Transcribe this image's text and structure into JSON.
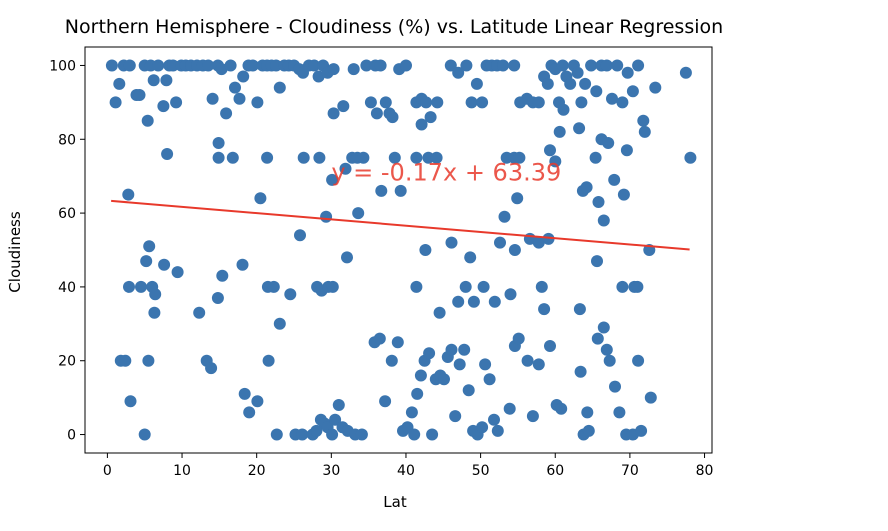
{
  "chart_data": {
    "type": "scatter",
    "title": "Northern Hemisphere - Cloudiness (%) vs. Latitude Linear Regression",
    "xlabel": "Lat",
    "ylabel": "Cloudiness",
    "xlim": [
      -3,
      81
    ],
    "ylim": [
      -5,
      105
    ],
    "xticks": [
      0,
      10,
      20,
      30,
      40,
      50,
      60,
      70,
      80
    ],
    "yticks": [
      0,
      20,
      40,
      60,
      80,
      100
    ],
    "grid": false,
    "point_color": "#3b75af",
    "line_color": "#e8392b",
    "regression": {
      "slope": -0.17,
      "intercept": 63.39,
      "x_range": [
        0.5,
        78
      ],
      "equation": "y = -0.17x + 63.39",
      "label_x": 30,
      "label_y": 71
    },
    "points": [
      [
        0.6,
        100
      ],
      [
        1.1,
        90
      ],
      [
        1.6,
        95
      ],
      [
        2.2,
        100
      ],
      [
        3.0,
        100
      ],
      [
        3.9,
        92
      ],
      [
        4.3,
        92
      ],
      [
        5.0,
        100
      ],
      [
        5.4,
        85
      ],
      [
        5.8,
        100
      ],
      [
        6.2,
        96
      ],
      [
        6.8,
        100
      ],
      [
        7.5,
        89
      ],
      [
        7.9,
        96
      ],
      [
        8.3,
        100
      ],
      [
        8.8,
        100
      ],
      [
        9.2,
        90
      ],
      [
        9.9,
        100
      ],
      [
        10.5,
        100
      ],
      [
        11.2,
        100
      ],
      [
        12.0,
        100
      ],
      [
        12.8,
        100
      ],
      [
        13.5,
        100
      ],
      [
        14.1,
        91
      ],
      [
        14.8,
        100
      ],
      [
        15.3,
        99
      ],
      [
        15.9,
        87
      ],
      [
        16.5,
        100
      ],
      [
        17.1,
        94
      ],
      [
        17.7,
        91
      ],
      [
        18.2,
        97
      ],
      [
        18.9,
        100
      ],
      [
        19.5,
        100
      ],
      [
        20.1,
        90
      ],
      [
        20.8,
        100
      ],
      [
        21.4,
        100
      ],
      [
        22.0,
        100
      ],
      [
        22.6,
        100
      ],
      [
        23.1,
        94
      ],
      [
        23.7,
        100
      ],
      [
        24.3,
        100
      ],
      [
        25.0,
        100
      ],
      [
        25.7,
        99
      ],
      [
        26.2,
        98
      ],
      [
        27.0,
        100
      ],
      [
        27.7,
        100
      ],
      [
        28.3,
        97
      ],
      [
        28.9,
        100
      ],
      [
        29.5,
        98
      ],
      [
        30.3,
        99
      ],
      [
        31.6,
        89
      ],
      [
        33.0,
        99
      ],
      [
        34.7,
        100
      ],
      [
        35.3,
        90
      ],
      [
        35.9,
        100
      ],
      [
        36.6,
        100
      ],
      [
        37.3,
        90
      ],
      [
        38.2,
        86
      ],
      [
        39.1,
        99
      ],
      [
        40.0,
        100
      ],
      [
        41.4,
        90
      ],
      [
        42.1,
        91
      ],
      [
        42.7,
        90
      ],
      [
        43.3,
        86
      ],
      [
        44.2,
        90
      ],
      [
        46.0,
        100
      ],
      [
        47.0,
        98
      ],
      [
        48.1,
        100
      ],
      [
        48.8,
        90
      ],
      [
        49.5,
        95
      ],
      [
        50.2,
        90
      ],
      [
        50.8,
        100
      ],
      [
        51.5,
        100
      ],
      [
        52.2,
        100
      ],
      [
        53.0,
        100
      ],
      [
        54.5,
        100
      ],
      [
        55.3,
        90
      ],
      [
        56.2,
        91
      ],
      [
        57.0,
        90
      ],
      [
        57.8,
        90
      ],
      [
        58.5,
        97
      ],
      [
        59.0,
        95
      ],
      [
        59.5,
        100
      ],
      [
        60.0,
        99
      ],
      [
        60.5,
        90
      ],
      [
        61.0,
        100
      ],
      [
        61.5,
        97
      ],
      [
        62.0,
        95
      ],
      [
        62.5,
        100
      ],
      [
        63.0,
        98
      ],
      [
        63.5,
        90
      ],
      [
        64.0,
        95
      ],
      [
        64.8,
        100
      ],
      [
        65.5,
        93
      ],
      [
        66.2,
        100
      ],
      [
        66.9,
        100
      ],
      [
        67.6,
        91
      ],
      [
        68.3,
        100
      ],
      [
        69.0,
        90
      ],
      [
        69.7,
        98
      ],
      [
        70.4,
        93
      ],
      [
        71.1,
        100
      ],
      [
        71.8,
        85
      ],
      [
        73.4,
        94
      ],
      [
        77.5,
        98
      ],
      [
        8.0,
        76
      ],
      [
        14.9,
        79
      ],
      [
        14.9,
        75
      ],
      [
        16.8,
        75
      ],
      [
        21.4,
        75
      ],
      [
        26.3,
        75
      ],
      [
        28.4,
        75
      ],
      [
        30.3,
        87
      ],
      [
        30.1,
        69
      ],
      [
        31.9,
        72
      ],
      [
        32.8,
        75
      ],
      [
        33.5,
        75
      ],
      [
        34.3,
        75
      ],
      [
        36.1,
        87
      ],
      [
        37.8,
        87
      ],
      [
        38.5,
        75
      ],
      [
        41.4,
        75
      ],
      [
        42.1,
        84
      ],
      [
        43.0,
        75
      ],
      [
        44.1,
        75
      ],
      [
        53.5,
        75
      ],
      [
        54.5,
        75
      ],
      [
        55.2,
        75
      ],
      [
        59.3,
        77
      ],
      [
        60.0,
        74
      ],
      [
        60.6,
        82
      ],
      [
        61.1,
        88
      ],
      [
        63.2,
        83
      ],
      [
        63.7,
        66
      ],
      [
        64.2,
        67
      ],
      [
        65.4,
        75
      ],
      [
        66.2,
        80
      ],
      [
        67.1,
        79
      ],
      [
        67.9,
        69
      ],
      [
        69.2,
        65
      ],
      [
        69.6,
        77
      ],
      [
        72.0,
        82
      ],
      [
        78.1,
        75
      ],
      [
        2.8,
        65
      ],
      [
        5.6,
        51
      ],
      [
        5.2,
        47
      ],
      [
        6.3,
        33
      ],
      [
        6.4,
        38
      ],
      [
        7.6,
        46
      ],
      [
        9.4,
        44
      ],
      [
        12.3,
        33
      ],
      [
        14.8,
        37
      ],
      [
        15.4,
        43
      ],
      [
        18.1,
        46
      ],
      [
        20.5,
        64
      ],
      [
        21.5,
        40
      ],
      [
        22.3,
        40
      ],
      [
        23.1,
        30
      ],
      [
        24.5,
        38
      ],
      [
        25.8,
        54
      ],
      [
        28.1,
        40
      ],
      [
        28.7,
        39
      ],
      [
        29.6,
        40
      ],
      [
        30.2,
        40
      ],
      [
        29.3,
        59
      ],
      [
        32.1,
        48
      ],
      [
        33.6,
        60
      ],
      [
        36.7,
        66
      ],
      [
        39.3,
        66
      ],
      [
        41.4,
        40
      ],
      [
        42.6,
        50
      ],
      [
        44.5,
        33
      ],
      [
        46.1,
        52
      ],
      [
        47.0,
        36
      ],
      [
        48.0,
        40
      ],
      [
        48.6,
        48
      ],
      [
        49.1,
        36
      ],
      [
        50.4,
        40
      ],
      [
        51.9,
        36
      ],
      [
        52.6,
        52
      ],
      [
        53.2,
        59
      ],
      [
        54.0,
        38
      ],
      [
        54.6,
        50
      ],
      [
        54.9,
        64
      ],
      [
        56.6,
        53
      ],
      [
        57.8,
        52
      ],
      [
        58.2,
        40
      ],
      [
        58.5,
        34
      ],
      [
        59.1,
        53
      ],
      [
        63.3,
        34
      ],
      [
        65.6,
        47
      ],
      [
        65.8,
        63
      ],
      [
        66.5,
        58
      ],
      [
        69.0,
        40
      ],
      [
        70.6,
        40
      ],
      [
        71.0,
        40
      ],
      [
        72.6,
        50
      ],
      [
        1.8,
        20
      ],
      [
        2.4,
        20
      ],
      [
        2.9,
        40
      ],
      [
        3.1,
        9
      ],
      [
        4.5,
        40
      ],
      [
        5.0,
        0
      ],
      [
        5.5,
        20
      ],
      [
        6.0,
        40
      ],
      [
        13.3,
        20
      ],
      [
        13.9,
        18
      ],
      [
        18.4,
        11
      ],
      [
        19.0,
        6
      ],
      [
        20.1,
        9
      ],
      [
        21.6,
        20
      ],
      [
        22.7,
        0
      ],
      [
        25.2,
        0
      ],
      [
        26.1,
        0
      ],
      [
        27.5,
        0
      ],
      [
        28.0,
        1
      ],
      [
        28.6,
        4
      ],
      [
        29.1,
        3
      ],
      [
        29.5,
        2
      ],
      [
        30.1,
        0
      ],
      [
        30.5,
        4
      ],
      [
        31.0,
        8
      ],
      [
        31.5,
        2
      ],
      [
        32.2,
        1
      ],
      [
        33.2,
        0
      ],
      [
        34.1,
        0
      ],
      [
        35.8,
        25
      ],
      [
        36.5,
        26
      ],
      [
        37.2,
        9
      ],
      [
        38.1,
        20
      ],
      [
        38.9,
        25
      ],
      [
        39.6,
        1
      ],
      [
        40.2,
        2
      ],
      [
        40.8,
        6
      ],
      [
        41.1,
        0
      ],
      [
        41.5,
        11
      ],
      [
        42.0,
        16
      ],
      [
        42.5,
        20
      ],
      [
        43.1,
        22
      ],
      [
        43.5,
        0
      ],
      [
        44.0,
        15
      ],
      [
        44.6,
        16
      ],
      [
        45.1,
        15
      ],
      [
        45.6,
        21
      ],
      [
        46.1,
        23
      ],
      [
        46.6,
        5
      ],
      [
        47.2,
        19
      ],
      [
        47.8,
        23
      ],
      [
        48.4,
        12
      ],
      [
        49.0,
        1
      ],
      [
        49.6,
        0
      ],
      [
        50.2,
        2
      ],
      [
        50.6,
        19
      ],
      [
        51.2,
        15
      ],
      [
        51.8,
        4
      ],
      [
        52.3,
        1
      ],
      [
        53.9,
        7
      ],
      [
        54.6,
        24
      ],
      [
        55.1,
        26
      ],
      [
        56.3,
        20
      ],
      [
        57.0,
        5
      ],
      [
        57.8,
        19
      ],
      [
        59.3,
        24
      ],
      [
        60.2,
        8
      ],
      [
        60.8,
        7
      ],
      [
        63.4,
        17
      ],
      [
        63.8,
        0
      ],
      [
        64.3,
        6
      ],
      [
        64.5,
        1
      ],
      [
        65.7,
        26
      ],
      [
        66.5,
        29
      ],
      [
        66.9,
        23
      ],
      [
        67.3,
        20
      ],
      [
        68.0,
        13
      ],
      [
        68.6,
        6
      ],
      [
        69.5,
        0
      ],
      [
        70.4,
        0
      ],
      [
        71.5,
        1
      ],
      [
        71.1,
        20
      ],
      [
        72.8,
        10
      ]
    ]
  }
}
